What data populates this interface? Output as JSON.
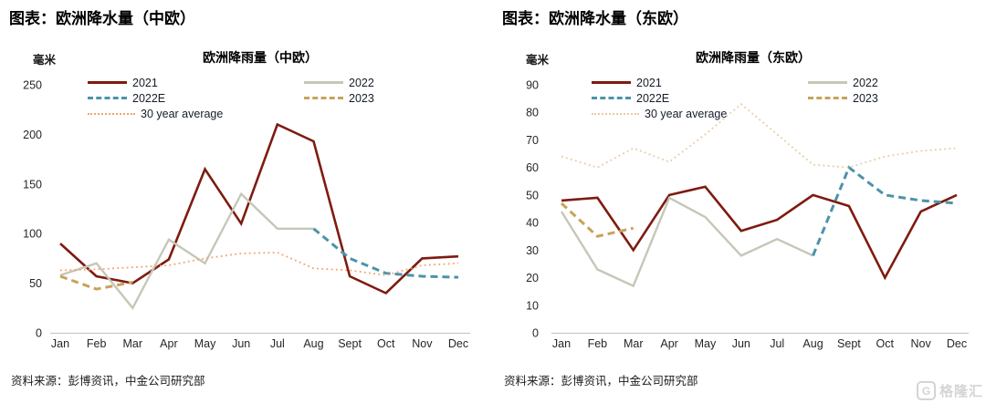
{
  "chart_data": [
    {
      "type": "line",
      "header": "图表：欧洲降水量（中欧）",
      "title": "欧洲降雨量（中欧）",
      "unit": "毫米",
      "source": "资料来源：彭博资讯，中金公司研究部",
      "categories": [
        "Jan",
        "Feb",
        "Mar",
        "Apr",
        "May",
        "Jun",
        "Jul",
        "Aug",
        "Sept",
        "Oct",
        "Nov",
        "Dec"
      ],
      "ylim": [
        0,
        250
      ],
      "yticks": [
        0,
        50,
        100,
        150,
        200,
        250
      ],
      "grid": false,
      "legend_position": "top",
      "series": [
        {
          "name": "2021",
          "style": "solid",
          "color": "#7e1b10",
          "width": 2.6,
          "start": 0,
          "values": [
            90,
            57,
            50,
            74,
            165,
            110,
            210,
            193,
            57,
            40,
            75,
            77
          ]
        },
        {
          "name": "2022",
          "style": "solid",
          "color": "#c6c7b8",
          "width": 2.4,
          "start": 0,
          "values": [
            58,
            70,
            25,
            94,
            70,
            140,
            105,
            105
          ]
        },
        {
          "name": "2022E",
          "style": "dashed",
          "color": "#4c93a9",
          "width": 3,
          "start": 7,
          "values": [
            105,
            75,
            60,
            57,
            56
          ]
        },
        {
          "name": "2023",
          "style": "dashed",
          "color": "#c8a25a",
          "width": 3,
          "start": 0,
          "values": [
            57,
            44,
            51
          ]
        },
        {
          "name": "30 year average",
          "style": "dotted",
          "color": "#f2a36e",
          "width": 1.8,
          "start": 0,
          "values": [
            63,
            64,
            66,
            68,
            75,
            80,
            81,
            65,
            63,
            58,
            68,
            70
          ]
        }
      ]
    },
    {
      "type": "line",
      "header": "图表：欧洲降水量（东欧）",
      "title": "欧洲降雨量（东欧）",
      "unit": "毫米",
      "source": "资料来源：彭博资讯，中金公司研究部",
      "categories": [
        "Jan",
        "Feb",
        "Mar",
        "Apr",
        "May",
        "Jun",
        "Jul",
        "Aug",
        "Sept",
        "Oct",
        "Nov",
        "Dec"
      ],
      "ylim": [
        0,
        90
      ],
      "yticks": [
        0,
        10,
        20,
        30,
        40,
        50,
        60,
        70,
        80,
        90
      ],
      "grid": false,
      "legend_position": "top",
      "series": [
        {
          "name": "2021",
          "style": "solid",
          "color": "#7e1b10",
          "width": 2.6,
          "start": 0,
          "values": [
            48,
            49,
            30,
            50,
            53,
            37,
            41,
            50,
            46,
            20,
            44,
            50
          ]
        },
        {
          "name": "2022",
          "style": "solid",
          "color": "#c6c7b8",
          "width": 2.4,
          "start": 0,
          "values": [
            44,
            23,
            17,
            49,
            42,
            28,
            34,
            28
          ]
        },
        {
          "name": "2022E",
          "style": "dashed",
          "color": "#4c93a9",
          "width": 3,
          "start": 7,
          "values": [
            28,
            60,
            50,
            48,
            47
          ]
        },
        {
          "name": "2023",
          "style": "dashed",
          "color": "#c8a25a",
          "width": 3,
          "start": 0,
          "values": [
            47,
            35,
            38
          ]
        },
        {
          "name": "30 year average",
          "style": "dotted",
          "color": "#e9cba2",
          "width": 1.8,
          "start": 0,
          "values": [
            64,
            60,
            67,
            62,
            72,
            83,
            72,
            61,
            60,
            64,
            66,
            67
          ]
        }
      ]
    }
  ],
  "watermark": {
    "logo_letter": "G",
    "text": "格隆汇"
  },
  "colors": {
    "axis": "#c9c9c9",
    "text": "#1a1a1a",
    "watermark": "#d4d4d4"
  }
}
